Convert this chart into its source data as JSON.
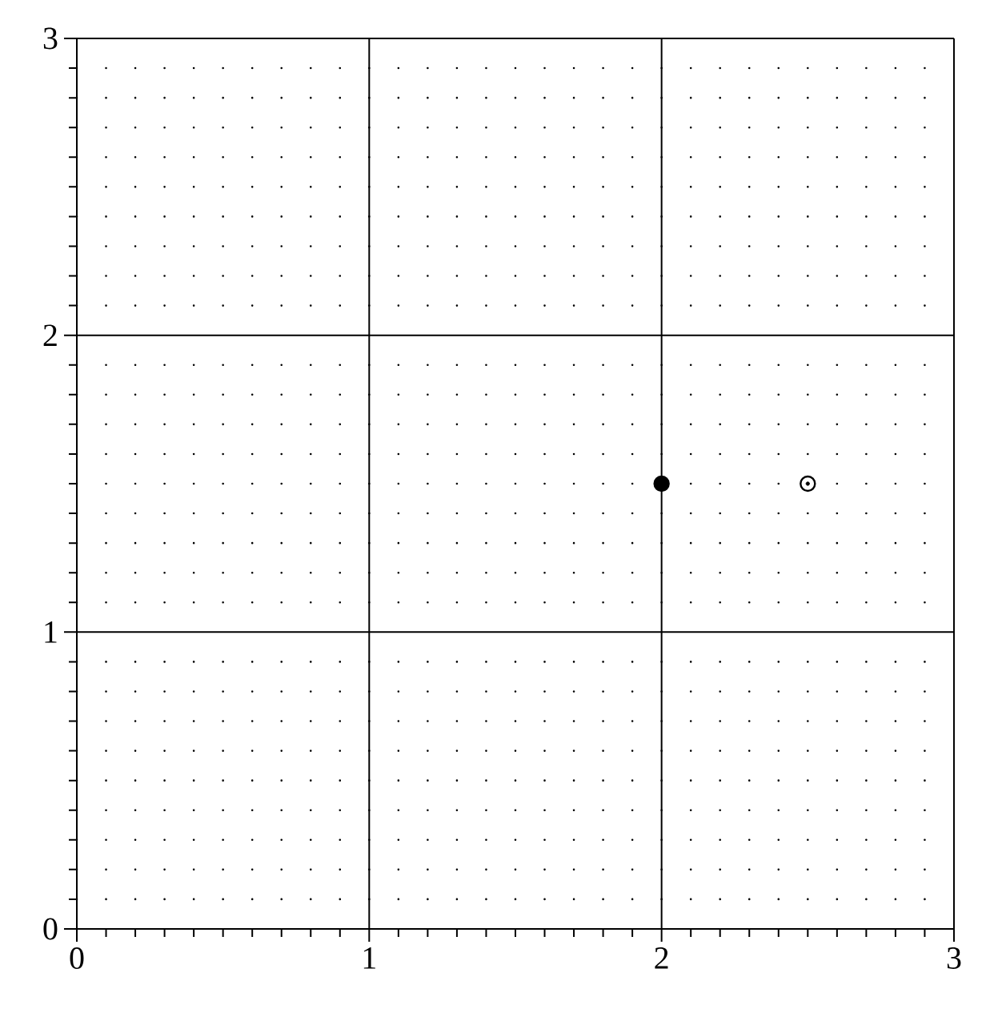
{
  "chart_data": {
    "type": "scatter",
    "xlim": [
      0,
      3
    ],
    "ylim": [
      0,
      3
    ],
    "xticks": [
      0,
      1,
      2,
      3
    ],
    "yticks": [
      0,
      1,
      2,
      3
    ],
    "grid": true,
    "marker": "circle",
    "series": [
      {
        "color": "#000000",
        "x": [
          2
        ],
        "values": [
          1.5
        ]
      },
      {
        "color": "#ffffff",
        "x": [
          2.5
        ],
        "values": [
          1.5
        ],
        "marker": "circle"
      }
    ]
  }
}
